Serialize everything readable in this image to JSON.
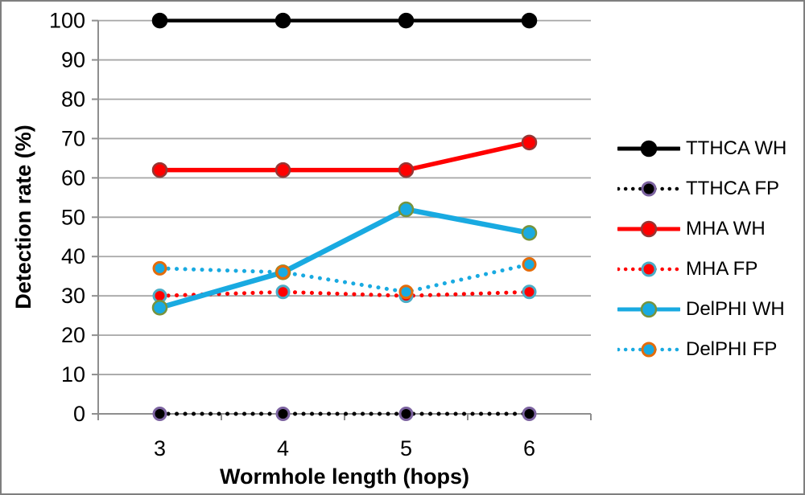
{
  "figure": {
    "background_color": "#FFFFFF",
    "border_color": "#7F7F7F",
    "grid_color": "#A6A6A6",
    "axis_color": "#8E8E8E",
    "text_color": "#000000"
  },
  "chart_data": {
    "type": "line",
    "title": "",
    "xlabel": "Wormhole length (hops)",
    "ylabel": "Detection rate (%)",
    "x": [
      3,
      4,
      5,
      6
    ],
    "x_tick_labels": [
      "3",
      "4",
      "5",
      "6"
    ],
    "ylim": [
      0,
      100
    ],
    "ytick_step": 10,
    "y_tick_labels": [
      "0",
      "10",
      "20",
      "30",
      "40",
      "50",
      "60",
      "70",
      "80",
      "90",
      "100"
    ],
    "grid": "horizontal",
    "legend_position": "right",
    "series": [
      {
        "name": "TTHCA WH",
        "style": "solid",
        "color": "#000000",
        "marker_fill": "#000000",
        "marker_edge": "#000000",
        "values": [
          100,
          100,
          100,
          100
        ]
      },
      {
        "name": "TTHCA FP",
        "style": "dotted",
        "color": "#000000",
        "marker_fill": "#000000",
        "marker_edge": "#7C63A0",
        "values": [
          0,
          0,
          0,
          0
        ]
      },
      {
        "name": "MHA WH",
        "style": "solid",
        "color": "#FF0000",
        "marker_fill": "#FF0000",
        "marker_edge": "#963634",
        "values": [
          62,
          62,
          62,
          69
        ]
      },
      {
        "name": "MHA FP",
        "style": "dotted",
        "color": "#FF0000",
        "marker_fill": "#FF0000",
        "marker_edge": "#4BACC6",
        "values": [
          30,
          31,
          30,
          31
        ]
      },
      {
        "name": "DelPHI WH",
        "style": "solid",
        "color": "#19AAE1",
        "marker_fill": "#19AAE1",
        "marker_edge": "#77933C",
        "values": [
          27,
          36,
          52,
          46
        ]
      },
      {
        "name": "DelPHI FP",
        "style": "dotted",
        "color": "#19AAE1",
        "marker_fill": "#19AAE1",
        "marker_edge": "#E46C0A",
        "values": [
          37,
          36,
          31,
          38
        ]
      }
    ]
  }
}
